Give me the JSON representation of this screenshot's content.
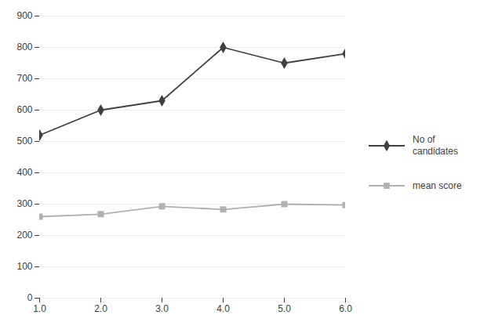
{
  "chart_data": {
    "type": "line",
    "x": [
      1,
      2,
      3,
      4,
      5,
      6
    ],
    "series": [
      {
        "name": "No of\ncandidates",
        "color": "#404040",
        "marker": "diamond",
        "values": [
          520,
          600,
          630,
          800,
          750,
          780
        ]
      },
      {
        "name": "mean score",
        "color": "#b0b0b0",
        "marker": "square",
        "values": [
          260,
          268,
          293,
          283,
          300,
          297
        ]
      }
    ],
    "xlim": [
      1,
      6
    ],
    "xticks": [
      1,
      2,
      3,
      4,
      5,
      6
    ],
    "ylim": [
      0,
      900
    ],
    "yticks": [
      0,
      100,
      200,
      300,
      400,
      500,
      600,
      700,
      800,
      900
    ],
    "grid": true,
    "legend": "right"
  }
}
